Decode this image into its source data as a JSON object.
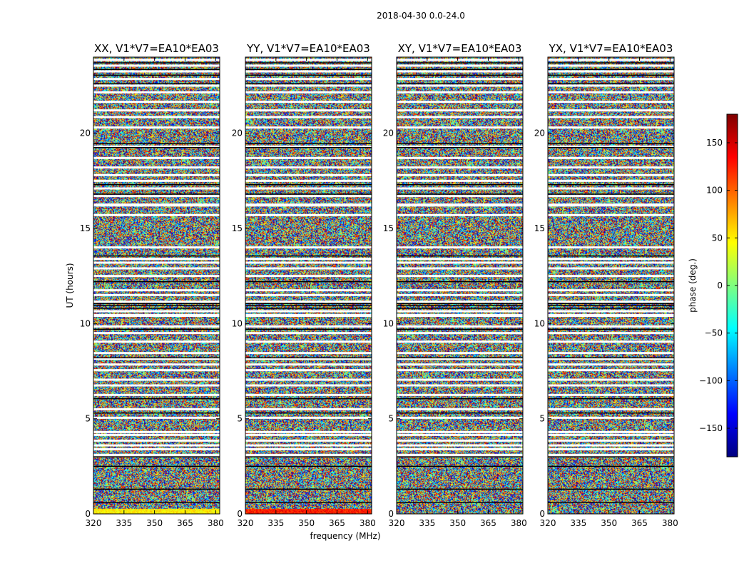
{
  "chart_data": {
    "type": "heatmap",
    "suptitle": "2018-04-30 0.0-24.0",
    "xlabel": "frequency (MHz)",
    "ylabel": "UT (hours)",
    "xlim": [
      320,
      382
    ],
    "ylim": [
      0,
      24
    ],
    "x_ticks": [
      320,
      335,
      350,
      365,
      380
    ],
    "y_ticks": [
      0,
      5,
      10,
      15,
      20
    ],
    "panels": [
      {
        "title": "XX, V1*V7=EA10*EA03",
        "low_band": "yellow"
      },
      {
        "title": "YY, V1*V7=EA10*EA03",
        "low_band": "red"
      },
      {
        "title": "XY, V1*V7=EA10*EA03",
        "low_band": "none"
      },
      {
        "title": "YX, V1*V7=EA10*EA03",
        "low_band": "none"
      }
    ],
    "white_gaps_ut": [
      3.1,
      3.4,
      3.6,
      3.85,
      4.15,
      4.3,
      5.05,
      5.5,
      6.25,
      6.75,
      7.05,
      7.55,
      7.85,
      8.15,
      8.45,
      9.05,
      9.5,
      9.85,
      10.45,
      10.65,
      11.15,
      11.5,
      11.75,
      12.5,
      12.9,
      13.2,
      13.4,
      14.0,
      15.7,
      16.25,
      16.7,
      17.1,
      17.5,
      17.8,
      18.2,
      18.7,
      19.3,
      20.3,
      20.85,
      21.2,
      21.65,
      22.15,
      22.5,
      22.85,
      23.25,
      23.55,
      23.85
    ],
    "black_lines_ut": [
      0.6,
      1.3,
      2.5,
      3.0,
      5.3,
      6.05,
      8.2,
      9.7,
      10.8,
      10.95,
      11.05,
      12.2,
      13.55,
      16.8,
      17.3,
      19.25,
      19.45,
      22.6,
      23.05,
      23.35,
      23.7
    ],
    "colorbar": {
      "label": "phase (deg.)",
      "range": [
        -180,
        180
      ],
      "ticks": [
        150,
        100,
        50,
        0,
        -50,
        -100,
        -150
      ],
      "tick_labels": [
        "150",
        "100",
        "50",
        "0",
        "−50",
        "−100",
        "−150"
      ],
      "colormap": [
        "#00007f",
        "#0000ff",
        "#007fff",
        "#00ffff",
        "#7fff7f",
        "#ffff00",
        "#ff7f00",
        "#ff0000",
        "#7f0000"
      ]
    }
  }
}
